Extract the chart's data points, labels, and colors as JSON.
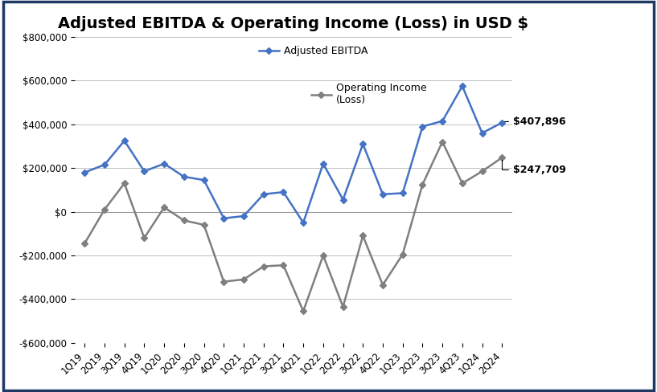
{
  "title": "Adjusted EBITDA & Operating Income (Loss) in USD $",
  "categories": [
    "1Q19",
    "2Q19",
    "3Q19",
    "4Q19",
    "1Q20",
    "2Q20",
    "3Q20",
    "4Q20",
    "1Q21",
    "2Q21",
    "3Q21",
    "4Q21",
    "1Q22",
    "2Q22",
    "3Q22",
    "4Q22",
    "1Q23",
    "2Q23",
    "3Q23",
    "4Q23",
    "1Q24",
    "2Q24"
  ],
  "ebitda": [
    180000,
    215000,
    325000,
    185000,
    220000,
    160000,
    145000,
    -30000,
    -20000,
    80000,
    90000,
    -50000,
    220000,
    55000,
    310000,
    80000,
    85000,
    390000,
    415000,
    575000,
    360000,
    407896
  ],
  "operating_income": [
    -145000,
    10000,
    130000,
    -120000,
    20000,
    -40000,
    -60000,
    -320000,
    -310000,
    -250000,
    -245000,
    -455000,
    -200000,
    -435000,
    -110000,
    -335000,
    -195000,
    125000,
    320000,
    130000,
    185000,
    247709
  ],
  "ebitda_color": "#4472C4",
  "operating_color": "#7F7F7F",
  "ylim": [
    -600000,
    800000
  ],
  "yticks": [
    -600000,
    -400000,
    -200000,
    0,
    200000,
    400000,
    600000,
    800000
  ],
  "label_ebitda": "Adjusted EBITDA",
  "label_operating": "Operating Income\n(Loss)",
  "annotation_ebitda": "$407,896",
  "annotation_operating": "$247,709",
  "bg_color": "#FFFFFF",
  "border_color": "#1F3864",
  "title_fontsize": 14,
  "tick_fontsize": 8.5,
  "legend_fontsize": 9,
  "annotation_fontsize": 9
}
